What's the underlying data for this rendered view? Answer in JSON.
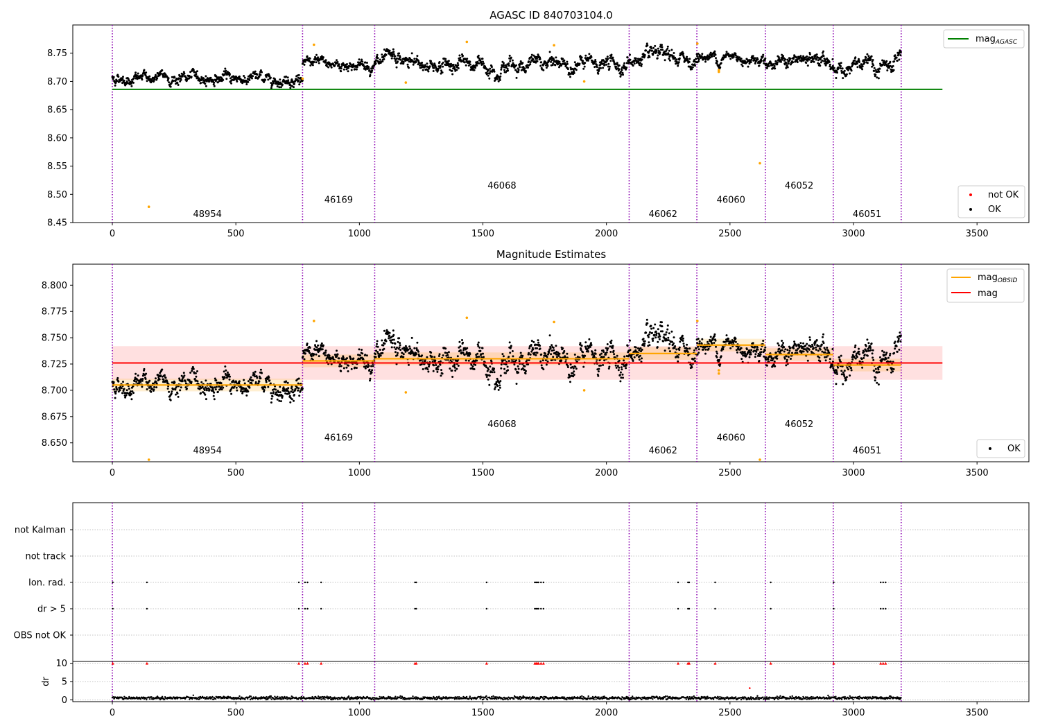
{
  "figure": {
    "title": "AGASC ID 840703104.0"
  },
  "chart_data": [
    {
      "type": "scatter",
      "title": "",
      "xlabel": "",
      "ylabel": "",
      "xlim": [
        -160,
        3710
      ],
      "ylim": [
        8.45,
        8.8
      ],
      "xticks": [
        0,
        500,
        1000,
        1500,
        2000,
        2500,
        3000,
        3500
      ],
      "xtick_labels": [
        "0",
        "500",
        "1000",
        "1500",
        "2000",
        "2500",
        "3000",
        "3500"
      ],
      "yticks": [
        8.45,
        8.5,
        8.55,
        8.6,
        8.65,
        8.7,
        8.75
      ],
      "ytick_labels": [
        "8.45",
        "8.50",
        "8.55",
        "8.60",
        "8.65",
        "8.70",
        "8.75"
      ],
      "grid": false,
      "mag_agasc": {
        "value": 8.686,
        "x_range": [
          0,
          3360
        ],
        "color": "#008000"
      },
      "obsid_boundaries": [
        0,
        770,
        1062,
        2092,
        2366,
        2643,
        2918,
        3193
      ],
      "obsid_labels": [
        {
          "text": "48954",
          "x": 385,
          "y": 8.46
        },
        {
          "text": "46169",
          "x": 916,
          "y": 8.485
        },
        {
          "text": "46068",
          "x": 1577,
          "y": 8.51
        },
        {
          "text": "46062",
          "x": 2229,
          "y": 8.46
        },
        {
          "text": "46060",
          "x": 2504,
          "y": 8.485
        },
        {
          "text": "46052",
          "x": 2780,
          "y": 8.51
        },
        {
          "text": "46051",
          "x": 3055,
          "y": 8.46
        }
      ],
      "segments": [
        {
          "x": [
            0,
            770
          ],
          "mean": 8.706,
          "noise": 0.006
        },
        {
          "x": [
            770,
            1062
          ],
          "mean": 8.73,
          "noise": 0.006
        },
        {
          "x": [
            1062,
            2092
          ],
          "mean": 8.73,
          "noise": 0.008
        },
        {
          "x": [
            2092,
            2366
          ],
          "mean": 8.737,
          "noise": 0.008
        },
        {
          "x": [
            2366,
            2643
          ],
          "mean": 8.743,
          "noise": 0.006
        },
        {
          "x": [
            2643,
            2918
          ],
          "mean": 8.735,
          "noise": 0.007
        },
        {
          "x": [
            2918,
            3193
          ],
          "mean": 8.724,
          "noise": 0.009
        }
      ],
      "outliers": [
        {
          "x": 148,
          "y": 8.478
        },
        {
          "x": 770,
          "y": 8.705
        },
        {
          "x": 816,
          "y": 8.765
        },
        {
          "x": 1188,
          "y": 8.698
        },
        {
          "x": 1435,
          "y": 8.77
        },
        {
          "x": 1788,
          "y": 8.764
        },
        {
          "x": 1910,
          "y": 8.7
        },
        {
          "x": 2368,
          "y": 8.767
        },
        {
          "x": 2455,
          "y": 8.717
        },
        {
          "x": 2455,
          "y": 8.72
        },
        {
          "x": 2621,
          "y": 8.555
        }
      ],
      "legend_top": {
        "position": "top-right",
        "entries": [
          {
            "label": "mag",
            "sub": "AGASC",
            "color": "#008000"
          }
        ]
      },
      "legend_bottom": {
        "position": "lower-right",
        "entries": [
          {
            "label": "not OK",
            "color": "#ff0000"
          },
          {
            "label": "OK",
            "color": "#000000"
          }
        ]
      }
    },
    {
      "type": "scatter",
      "title": "Magnitude Estimates",
      "xlabel": "",
      "ylabel": "",
      "xlim": [
        -160,
        3710
      ],
      "ylim": [
        8.632,
        8.82
      ],
      "xticks": [
        0,
        500,
        1000,
        1500,
        2000,
        2500,
        3000,
        3500
      ],
      "xtick_labels": [
        "0",
        "500",
        "1000",
        "1500",
        "2000",
        "2500",
        "3000",
        "3500"
      ],
      "yticks": [
        8.65,
        8.675,
        8.7,
        8.725,
        8.75,
        8.775,
        8.8
      ],
      "ytick_labels": [
        "8.650",
        "8.675",
        "8.700",
        "8.725",
        "8.750",
        "8.775",
        "8.800"
      ],
      "grid": false,
      "mag": {
        "value": 8.726,
        "band": [
          8.71,
          8.742
        ],
        "x_range": [
          0,
          3360
        ],
        "color": "#ff0000"
      },
      "mag_obsid": [
        {
          "x": [
            0,
            770
          ],
          "value": 8.705
        },
        {
          "x": [
            770,
            1062
          ],
          "value": 8.728
        },
        {
          "x": [
            1062,
            2092
          ],
          "value": 8.73
        },
        {
          "x": [
            2092,
            2366
          ],
          "value": 8.735
        },
        {
          "x": [
            2366,
            2643
          ],
          "value": 8.743
        },
        {
          "x": [
            2643,
            2918
          ],
          "value": 8.734
        },
        {
          "x": [
            2918,
            3193
          ],
          "value": 8.724
        }
      ],
      "obsid_boundaries": [
        0,
        770,
        1062,
        2092,
        2366,
        2643,
        2918,
        3193
      ],
      "obsid_labels": [
        {
          "text": "48954",
          "x": 385,
          "y": 8.64
        },
        {
          "text": "46169",
          "x": 916,
          "y": 8.652
        },
        {
          "text": "46068",
          "x": 1577,
          "y": 8.665
        },
        {
          "text": "46062",
          "x": 2229,
          "y": 8.64
        },
        {
          "text": "46060",
          "x": 2504,
          "y": 8.652
        },
        {
          "text": "46052",
          "x": 2780,
          "y": 8.665
        },
        {
          "text": "46051",
          "x": 3055,
          "y": 8.64
        }
      ],
      "outliers": [
        {
          "x": 148,
          "y": 8.634
        },
        {
          "x": 816,
          "y": 8.766
        },
        {
          "x": 1188,
          "y": 8.698
        },
        {
          "x": 1435,
          "y": 8.769
        },
        {
          "x": 1788,
          "y": 8.765
        },
        {
          "x": 1910,
          "y": 8.7
        },
        {
          "x": 2368,
          "y": 8.766
        },
        {
          "x": 2455,
          "y": 8.716
        },
        {
          "x": 2455,
          "y": 8.719
        },
        {
          "x": 2621,
          "y": 8.634
        }
      ],
      "legend_top": {
        "position": "top-right",
        "entries": [
          {
            "label": "mag",
            "sub": "OBSID",
            "color": "#ffa500"
          },
          {
            "label": "mag",
            "color": "#ff0000"
          }
        ]
      },
      "legend_bottom": {
        "position": "lower-right",
        "entries": [
          {
            "label": "OK",
            "color": "#000000"
          }
        ]
      }
    },
    {
      "type": "scatter",
      "title": "",
      "xlabel": "",
      "ylabel": "",
      "xlim": [
        -160,
        3710
      ],
      "categories": [
        "not Kalman",
        "not track",
        "Ion. rad.",
        "dr > 5",
        "OBS not OK"
      ],
      "flag_x": [
        2,
        140,
        755,
        780,
        790,
        845,
        1225,
        1230,
        1515,
        1710,
        1715,
        1720,
        1725,
        1735,
        1745,
        2290,
        2330,
        2335,
        2440,
        2665,
        2920,
        3110,
        3120,
        3130
      ],
      "grid": true
    },
    {
      "type": "scatter",
      "title": "",
      "xlabel": "",
      "ylabel": "dr",
      "xlim": [
        -160,
        3710
      ],
      "ylim": [
        -0.5,
        10.5
      ],
      "xticks": [
        0,
        500,
        1000,
        1500,
        2000,
        2500,
        3000,
        3500
      ],
      "xtick_labels": [
        "0",
        "500",
        "1000",
        "1500",
        "2000",
        "2500",
        "3000",
        "3500"
      ],
      "yticks": [
        0,
        5,
        10
      ],
      "ytick_labels": [
        "0",
        "5",
        "10"
      ],
      "grid": true,
      "clipped_red_x": [
        2,
        140,
        755,
        780,
        790,
        845,
        1225,
        1230,
        1515,
        1710,
        1715,
        1720,
        1725,
        1735,
        1745,
        2290,
        2330,
        2335,
        2440,
        2665,
        2920,
        3110,
        3120,
        3130
      ],
      "red_points": [
        {
          "x": 2580,
          "y": 3.2
        }
      ],
      "baseline": {
        "mean": 0.5,
        "spread": 0.35
      }
    }
  ]
}
